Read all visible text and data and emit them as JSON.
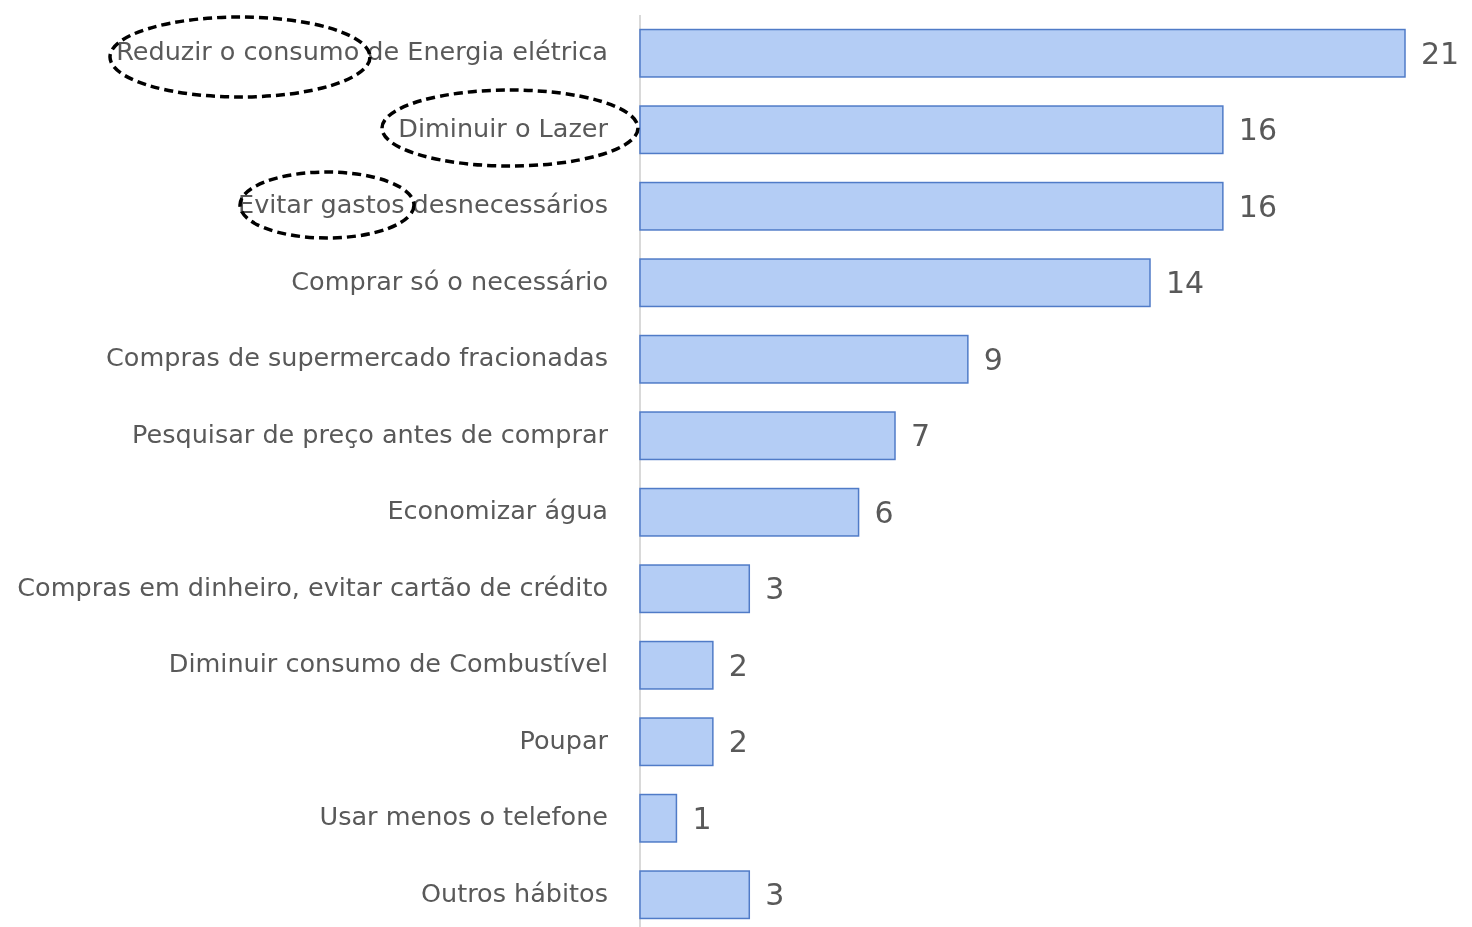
{
  "chart_data": {
    "type": "bar",
    "orientation": "horizontal",
    "categories": [
      "Reduzir o consumo de Energia elétrica",
      "Diminuir o Lazer",
      "Evitar gastos desnecessários",
      "Comprar só o necessário",
      "Compras de supermercado fracionadas",
      "Pesquisar de preço antes de comprar",
      "Economizar água",
      "Compras em dinheiro, evitar cartão de crédito",
      "Diminuir consumo de Combustível",
      "Poupar",
      "Usar menos o telefone",
      "Outros hábitos"
    ],
    "values": [
      21,
      16,
      16,
      14,
      9,
      7,
      6,
      3,
      2,
      2,
      1,
      3
    ],
    "color": "#b4cdf5",
    "data_labels": true
  }
}
